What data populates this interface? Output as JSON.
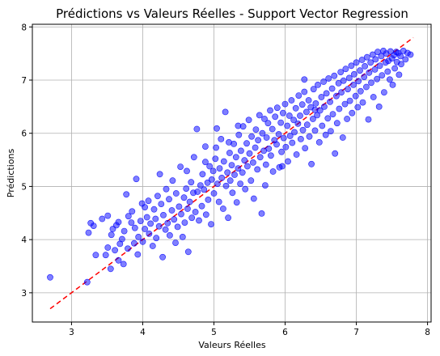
{
  "chart_data": {
    "type": "scatter",
    "title": "Prédictions vs Valeurs Réelles - Support Vector Regression",
    "xlabel": "Valeurs Réelles",
    "ylabel": "Prédictions",
    "xlim": [
      2.45,
      8.05
    ],
    "ylim": [
      2.45,
      8.05
    ],
    "x_ticks": [
      "3",
      "4",
      "5",
      "6",
      "7",
      "8"
    ],
    "y_ticks": [
      "3",
      "4",
      "5",
      "6",
      "7",
      "8"
    ],
    "grid": true,
    "point_color": "#0000ff",
    "reference_line": {
      "x": [
        2.7,
        7.8
      ],
      "y": [
        2.7,
        7.8
      ],
      "color": "#ff0000",
      "style": "dashed"
    },
    "series": [
      {
        "points": [
          [
            2.7,
            3.29
          ],
          [
            3.22,
            3.2
          ],
          [
            3.24,
            4.13
          ],
          [
            3.27,
            4.31
          ],
          [
            3.31,
            4.26
          ],
          [
            3.34,
            3.71
          ],
          [
            3.43,
            4.39
          ],
          [
            3.48,
            3.71
          ],
          [
            3.51,
            3.85
          ],
          [
            3.51,
            4.45
          ],
          [
            3.55,
            3.45
          ],
          [
            3.56,
            4.09
          ],
          [
            3.58,
            4.2
          ],
          [
            3.61,
            3.8
          ],
          [
            3.63,
            4.27
          ],
          [
            3.66,
            4.33
          ],
          [
            3.66,
            3.61
          ],
          [
            3.68,
            3.92
          ],
          [
            3.71,
            4.01
          ],
          [
            3.73,
            3.54
          ],
          [
            3.74,
            4.16
          ],
          [
            3.77,
            4.85
          ],
          [
            3.79,
            3.83
          ],
          [
            3.8,
            4.44
          ],
          [
            3.84,
            4.32
          ],
          [
            3.85,
            4.53
          ],
          [
            3.88,
            3.93
          ],
          [
            3.89,
            4.22
          ],
          [
            3.91,
            5.14
          ],
          [
            3.93,
            3.72
          ],
          [
            3.94,
            4.05
          ],
          [
            3.97,
            4.35
          ],
          [
            3.99,
            4.68
          ],
          [
            4.0,
            3.96
          ],
          [
            4.03,
            4.61
          ],
          [
            4.03,
            4.2
          ],
          [
            4.06,
            4.42
          ],
          [
            4.08,
            4.73
          ],
          [
            4.09,
            4.11
          ],
          [
            4.11,
            4.3
          ],
          [
            4.14,
            3.88
          ],
          [
            4.16,
            4.57
          ],
          [
            4.18,
            4.39
          ],
          [
            4.19,
            4.03
          ],
          [
            4.21,
            4.82
          ],
          [
            4.23,
            4.25
          ],
          [
            4.24,
            5.23
          ],
          [
            4.26,
            4.67
          ],
          [
            4.28,
            3.67
          ],
          [
            4.29,
            4.46
          ],
          [
            4.32,
            4.19
          ],
          [
            4.33,
            4.95
          ],
          [
            4.35,
            4.31
          ],
          [
            4.37,
            4.76
          ],
          [
            4.38,
            4.08
          ],
          [
            4.41,
            4.55
          ],
          [
            4.42,
            5.11
          ],
          [
            4.44,
            4.38
          ],
          [
            4.46,
            3.94
          ],
          [
            4.47,
            4.87
          ],
          [
            4.49,
            4.24
          ],
          [
            4.51,
            4.62
          ],
          [
            4.53,
            5.37
          ],
          [
            4.54,
            4.48
          ],
          [
            4.56,
            4.05
          ],
          [
            4.58,
            4.79
          ],
          [
            4.59,
            4.32
          ],
          [
            4.61,
            4.96
          ],
          [
            4.63,
            4.58
          ],
          [
            4.64,
            3.77
          ],
          [
            4.66,
            4.71
          ],
          [
            4.68,
            5.08
          ],
          [
            4.69,
            4.41
          ],
          [
            4.71,
            4.88
          ],
          [
            4.72,
            5.55
          ],
          [
            4.74,
            4.52
          ],
          [
            4.76,
            6.08
          ],
          [
            4.77,
            4.9
          ],
          [
            4.79,
            4.36
          ],
          [
            4.81,
            5.02
          ],
          [
            4.83,
            4.63
          ],
          [
            4.84,
            5.23
          ],
          [
            4.86,
            4.94
          ],
          [
            4.88,
            5.46
          ],
          [
            4.89,
            4.47
          ],
          [
            4.91,
            5.07
          ],
          [
            4.92,
            4.75
          ],
          [
            4.94,
            5.38
          ],
          [
            4.96,
            4.29
          ],
          [
            4.97,
            5.13
          ],
          [
            4.99,
            5.29
          ],
          [
            5.0,
            4.87
          ],
          [
            5.02,
            5.52
          ],
          [
            5.03,
            5.73
          ],
          [
            5.04,
            6.09
          ],
          [
            5.05,
            5.05
          ],
          [
            5.07,
            4.71
          ],
          [
            5.08,
            5.34
          ],
          [
            5.1,
            5.89
          ],
          [
            5.11,
            5.16
          ],
          [
            5.13,
            4.58
          ],
          [
            5.14,
            5.47
          ],
          [
            5.16,
            6.4
          ],
          [
            5.17,
            5.01
          ],
          [
            5.19,
            5.26
          ],
          [
            5.2,
            4.41
          ],
          [
            5.22,
            5.63
          ],
          [
            5.23,
            5.11
          ],
          [
            5.25,
            5.4
          ],
          [
            5.26,
            4.88
          ],
          [
            5.28,
            5.8
          ],
          [
            5.29,
            5.22
          ],
          [
            5.31,
            5.55
          ],
          [
            5.32,
            4.7
          ],
          [
            5.34,
            5.34
          ],
          [
            5.35,
            5.97
          ],
          [
            5.37,
            5.05
          ],
          [
            5.38,
            5.67
          ],
          [
            5.4,
            5.26
          ],
          [
            5.41,
            6.13
          ],
          [
            5.43,
            5.49
          ],
          [
            5.44,
            4.95
          ],
          [
            5.46,
            5.81
          ],
          [
            5.47,
            5.38
          ],
          [
            5.49,
            6.25
          ],
          [
            5.5,
            5.62
          ],
          [
            5.52,
            5.11
          ],
          [
            5.53,
            5.94
          ],
          [
            5.55,
            5.45
          ],
          [
            5.56,
            4.77
          ],
          [
            5.58,
            5.73
          ],
          [
            5.59,
            6.07
          ],
          [
            5.61,
            5.32
          ],
          [
            5.62,
            5.87
          ],
          [
            5.64,
            6.34
          ],
          [
            5.65,
            5.55
          ],
          [
            5.67,
            4.49
          ],
          [
            5.68,
            6.0
          ],
          [
            5.7,
            5.67
          ],
          [
            5.71,
            6.27
          ],
          [
            5.73,
            5.41
          ],
          [
            5.74,
            5.92
          ],
          [
            5.76,
            6.19
          ],
          [
            5.77,
            5.71
          ],
          [
            5.79,
            6.43
          ],
          [
            5.8,
            5.58
          ],
          [
            5.82,
            6.08
          ],
          [
            5.83,
            5.28
          ],
          [
            5.85,
            5.87
          ],
          [
            5.86,
            6.31
          ],
          [
            5.88,
            5.79
          ],
          [
            5.89,
            6.48
          ],
          [
            5.91,
            5.98
          ],
          [
            5.92,
            5.36
          ],
          [
            5.94,
            6.2
          ],
          [
            5.95,
            5.65
          ],
          [
            5.97,
            6.38
          ],
          [
            5.98,
            5.91
          ],
          [
            6.0,
            6.55
          ],
          [
            6.01,
            5.74
          ],
          [
            6.03,
            6.14
          ],
          [
            6.04,
            5.47
          ],
          [
            6.06,
            6.33
          ],
          [
            6.07,
            5.95
          ],
          [
            6.09,
            6.62
          ],
          [
            6.1,
            5.82
          ],
          [
            6.12,
            6.25
          ],
          [
            6.13,
            6.02
          ],
          [
            6.15,
            6.47
          ],
          [
            6.16,
            5.6
          ],
          [
            6.18,
            6.18
          ],
          [
            6.19,
            6.71
          ],
          [
            6.21,
            6.33
          ],
          [
            6.22,
            5.89
          ],
          [
            6.24,
            6.54
          ],
          [
            6.25,
            6.06
          ],
          [
            6.27,
            6.78
          ],
          [
            6.28,
            5.72
          ],
          [
            6.3,
            6.4
          ],
          [
            6.31,
            6.16
          ],
          [
            6.33,
            6.62
          ],
          [
            6.34,
            5.94
          ],
          [
            6.36,
            6.49
          ],
          [
            6.37,
            5.42
          ],
          [
            6.39,
            6.27
          ],
          [
            6.4,
            6.83
          ],
          [
            6.42,
            6.05
          ],
          [
            6.43,
            6.56
          ],
          [
            6.45,
            6.34
          ],
          [
            6.46,
            6.91
          ],
          [
            6.48,
            5.83
          ],
          [
            6.49,
            6.43
          ],
          [
            6.51,
            6.68
          ],
          [
            6.52,
            6.14
          ],
          [
            6.54,
            6.97
          ],
          [
            6.55,
            6.5
          ],
          [
            6.57,
            5.97
          ],
          [
            6.58,
            6.75
          ],
          [
            6.6,
            6.28
          ],
          [
            6.61,
            7.03
          ],
          [
            6.63,
            6.59
          ],
          [
            6.64,
            6.04
          ],
          [
            6.66,
            6.84
          ],
          [
            6.67,
            6.36
          ],
          [
            6.69,
            7.08
          ],
          [
            6.7,
            5.62
          ],
          [
            6.72,
            6.7
          ],
          [
            6.73,
            6.19
          ],
          [
            6.75,
            6.94
          ],
          [
            6.76,
            6.46
          ],
          [
            6.78,
            7.15
          ],
          [
            6.79,
            6.77
          ],
          [
            6.81,
            5.92
          ],
          [
            6.82,
            6.99
          ],
          [
            6.84,
            6.55
          ],
          [
            6.85,
            7.21
          ],
          [
            6.87,
            6.27
          ],
          [
            6.88,
            6.83
          ],
          [
            6.9,
            7.04
          ],
          [
            6.91,
            6.61
          ],
          [
            6.93,
            7.27
          ],
          [
            6.94,
            6.38
          ],
          [
            6.96,
            6.91
          ],
          [
            6.97,
            7.11
          ],
          [
            6.99,
            6.7
          ],
          [
            7.0,
            7.33
          ],
          [
            7.02,
            6.49
          ],
          [
            7.03,
            6.98
          ],
          [
            7.05,
            7.18
          ],
          [
            7.06,
            6.79
          ],
          [
            7.08,
            7.38
          ],
          [
            7.09,
            6.58
          ],
          [
            7.11,
            7.06
          ],
          [
            7.12,
            7.26
          ],
          [
            7.14,
            6.87
          ],
          [
            7.15,
            7.43
          ],
          [
            7.17,
            6.26
          ],
          [
            7.18,
            7.14
          ],
          [
            7.2,
            7.33
          ],
          [
            7.21,
            6.95
          ],
          [
            7.23,
            7.48
          ],
          [
            7.24,
            6.68
          ],
          [
            7.26,
            7.2
          ],
          [
            7.27,
            7.39
          ],
          [
            7.29,
            7.02
          ],
          [
            7.3,
            7.53
          ],
          [
            7.32,
            6.5
          ],
          [
            7.33,
            7.27
          ],
          [
            7.35,
            7.45
          ],
          [
            7.36,
            7.09
          ],
          [
            7.38,
            7.55
          ],
          [
            7.39,
            6.77
          ],
          [
            7.41,
            7.33
          ],
          [
            7.42,
            7.5
          ],
          [
            7.44,
            7.16
          ],
          [
            7.45,
            7.36
          ],
          [
            7.47,
            7.01
          ],
          [
            7.48,
            7.54
          ],
          [
            7.5,
            7.41
          ],
          [
            7.51,
            6.91
          ],
          [
            7.53,
            7.47
          ],
          [
            7.54,
            7.22
          ],
          [
            7.56,
            7.53
          ],
          [
            7.57,
            7.34
          ],
          [
            7.59,
            7.51
          ],
          [
            7.6,
            7.1
          ],
          [
            7.62,
            7.45
          ],
          [
            7.63,
            7.3
          ],
          [
            7.66,
            7.55
          ],
          [
            7.69,
            7.39
          ],
          [
            7.72,
            7.51
          ],
          [
            7.76,
            7.48
          ],
          [
            5.72,
            5.02
          ],
          [
            5.96,
            5.38
          ],
          [
            6.42,
            6.44
          ],
          [
            4.88,
            5.75
          ],
          [
            5.21,
            5.83
          ],
          [
            4.62,
            5.29
          ],
          [
            6.27,
            7.01
          ],
          [
            5.34,
            6.14
          ]
        ]
      }
    ]
  }
}
